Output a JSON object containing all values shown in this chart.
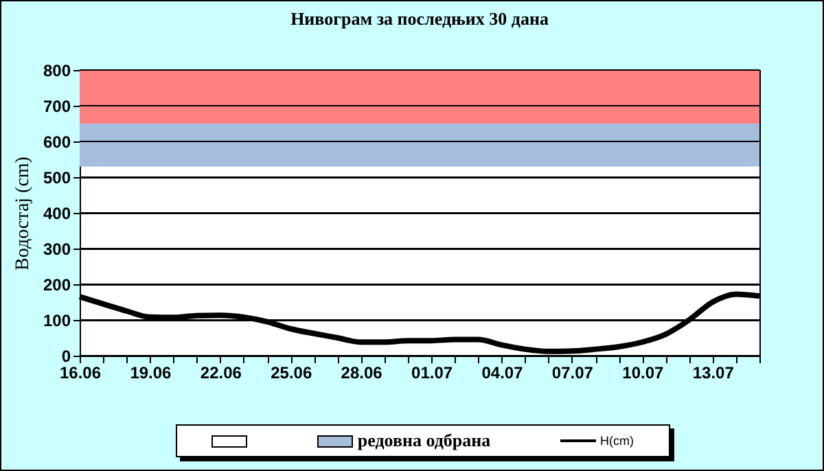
{
  "chart_data": {
    "type": "line",
    "title": "Нивограм за последњих 30 дана",
    "ylabel": "Водостај (cm)",
    "categories": [
      "16.06",
      null,
      null,
      "19.06",
      null,
      null,
      "22.06",
      null,
      null,
      "25.06",
      null,
      null,
      "28.06",
      null,
      null,
      "01.07",
      null,
      null,
      "04.07",
      null,
      null,
      "07.07",
      null,
      null,
      "10.07",
      null,
      null,
      "13.07",
      null,
      null
    ],
    "series": [
      {
        "name": "H(cm)",
        "color": "#000000",
        "values": [
          165,
          145,
          125,
          108,
          107,
          112,
          113,
          108,
          95,
          75,
          62,
          50,
          38,
          38,
          42,
          42,
          45,
          45,
          30,
          18,
          12,
          13,
          18,
          25,
          38,
          60,
          100,
          150,
          172,
          167
        ]
      }
    ],
    "ylim": [
      0,
      800
    ],
    "yticks": [
      0,
      100,
      200,
      300,
      400,
      500,
      600,
      700,
      800
    ],
    "grid": "y",
    "legend": "bottom",
    "bands": [
      {
        "axis": "y",
        "from": 530,
        "to": 650,
        "label": "редовна одбрана",
        "color": "#a6bddb"
      },
      {
        "axis": "y",
        "from": 650,
        "to": 800,
        "color": "#ff8080"
      }
    ]
  }
}
